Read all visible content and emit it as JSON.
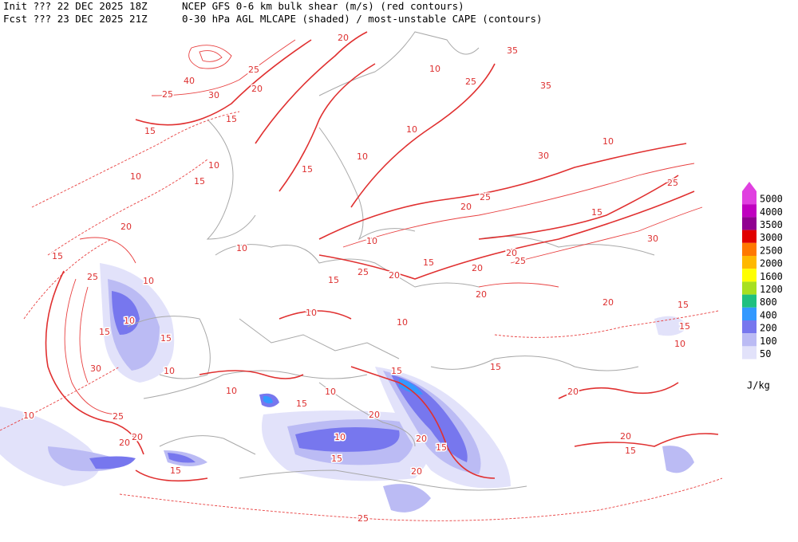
{
  "header": {
    "init": "Init  ??? 22 DEC 2025 18Z",
    "fcst": "Fcst ??? 23 DEC 2025 21Z",
    "title1": "NCEP GFS 0-6 km bulk shear (m/s) (red contours)",
    "title2": "0-30 hPa AGL MLCAPE (shaded) / most-unstable CAPE (contours)"
  },
  "legend": {
    "unit": "J/kg",
    "entries": [
      {
        "label": "5000",
        "color": "#e040e0"
      },
      {
        "label": "4000",
        "color": "#c000c0"
      },
      {
        "label": "3500",
        "color": "#900090"
      },
      {
        "label": "3000",
        "color": "#e00000"
      },
      {
        "label": "2500",
        "color": "#ff7800"
      },
      {
        "label": "2000",
        "color": "#ffb800"
      },
      {
        "label": "1600",
        "color": "#ffff00"
      },
      {
        "label": "1200",
        "color": "#a8e020"
      },
      {
        "label": "800",
        "color": "#20c080"
      },
      {
        "label": "400",
        "color": "#3399ff"
      },
      {
        "label": "200",
        "color": "#7777ee"
      },
      {
        "label": "100",
        "color": "#bbbbf4"
      },
      {
        "label": "50",
        "color": "#e2e2fa"
      }
    ]
  },
  "contour_labels": [
    "20",
    "35",
    "25",
    "10",
    "25",
    "35",
    "40",
    "25",
    "20",
    "30",
    "15",
    "15",
    "10",
    "10",
    "30",
    "15",
    "10",
    "10",
    "15",
    "10",
    "25",
    "20",
    "25",
    "15",
    "20",
    "15",
    "10",
    "10",
    "30",
    "25",
    "20",
    "15",
    "25",
    "20",
    "15",
    "25",
    "20",
    "10",
    "10",
    "10",
    "20",
    "10",
    "15",
    "15",
    "20",
    "10",
    "15",
    "30",
    "10",
    "15",
    "15",
    "10",
    "10",
    "20",
    "15",
    "10",
    "25",
    "20",
    "20",
    "10",
    "20",
    "20",
    "15",
    "20",
    "15",
    "15",
    "15",
    "20",
    "25",
    "15"
  ]
}
